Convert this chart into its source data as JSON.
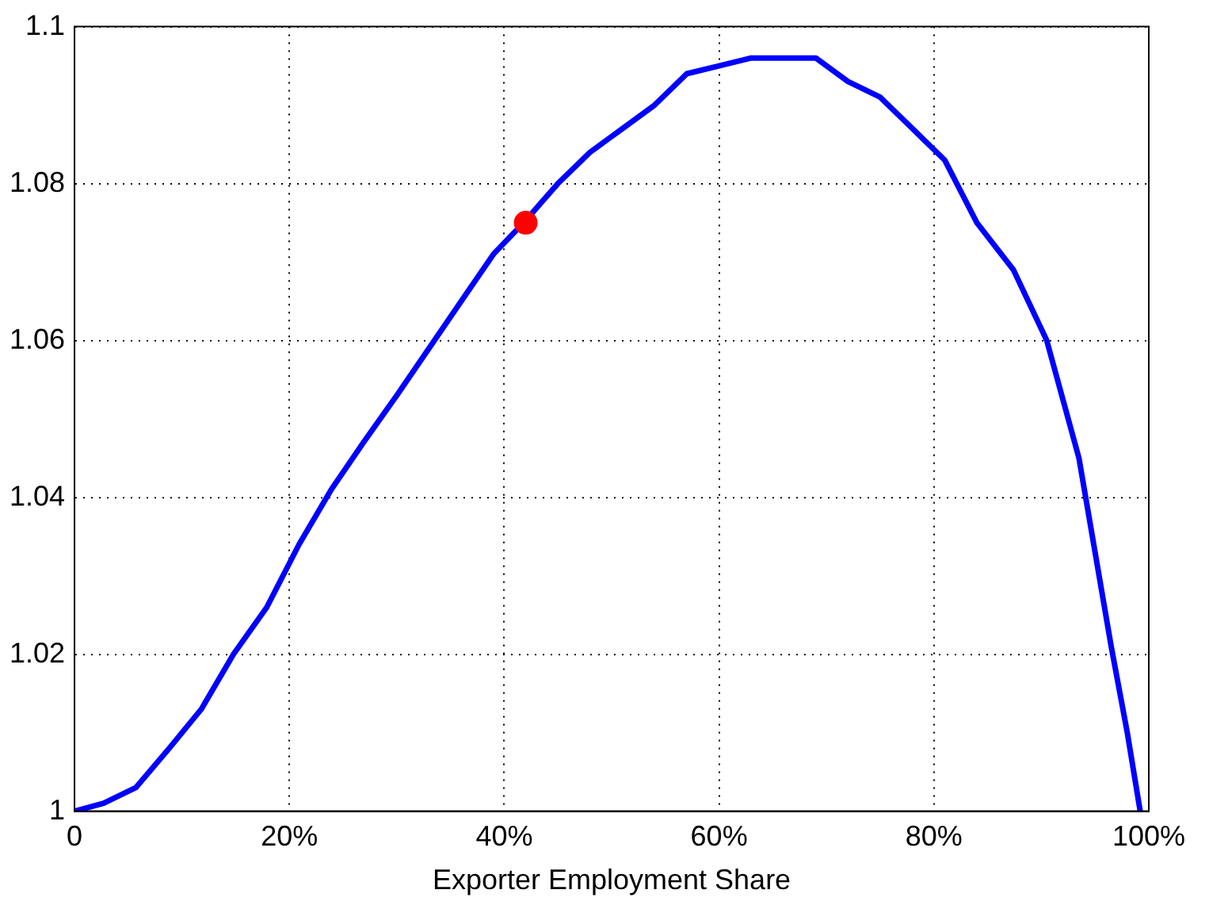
{
  "chart_data": {
    "type": "line",
    "xlabel": "Exporter Employment Share",
    "xlim": [
      0,
      100
    ],
    "ylim": [
      1,
      1.1
    ],
    "xticks": [
      {
        "value": 0,
        "label": "0"
      },
      {
        "value": 20,
        "label": "20%"
      },
      {
        "value": 40,
        "label": "40%"
      },
      {
        "value": 60,
        "label": "60%"
      },
      {
        "value": 80,
        "label": "80%"
      },
      {
        "value": 100,
        "label": "100%"
      }
    ],
    "yticks": [
      {
        "value": 1,
        "label": "1"
      },
      1.02,
      1.04,
      1.06,
      1.08,
      1.1
    ],
    "grid": true,
    "line_style": "solid",
    "marker": "none",
    "series": [
      {
        "color": "#0000ff",
        "x": [
          0,
          2.7,
          5.7,
          8.8,
          11.8,
          14.8,
          17.9,
          20.9,
          23.9,
          26.9,
          30,
          33,
          36,
          39,
          41.8,
          45,
          48,
          51,
          54,
          57,
          60,
          63,
          64.8,
          66,
          69,
          72,
          75,
          78,
          81,
          84,
          87.4,
          90.5,
          93.5,
          95,
          96.5,
          98,
          99.2
        ],
        "values": [
          1,
          1.001,
          1.003,
          1.008,
          1.013,
          1.02,
          1.026,
          1.034,
          1.041,
          1.047,
          1.053,
          1.059,
          1.065,
          1.071,
          1.075,
          1.08,
          1.084,
          1.087,
          1.09,
          1.094,
          1.095,
          1.096,
          1.096,
          1.096,
          1.096,
          1.093,
          1.091,
          1.087,
          1.083,
          1.075,
          1.069,
          1.06,
          1.045,
          1.033,
          1.021,
          1.01,
          1
        ]
      },
      {
        "type": "scatter",
        "color": "#ff0000",
        "marker": "circle",
        "x": [
          42
        ],
        "values": [
          1.075
        ]
      }
    ]
  }
}
